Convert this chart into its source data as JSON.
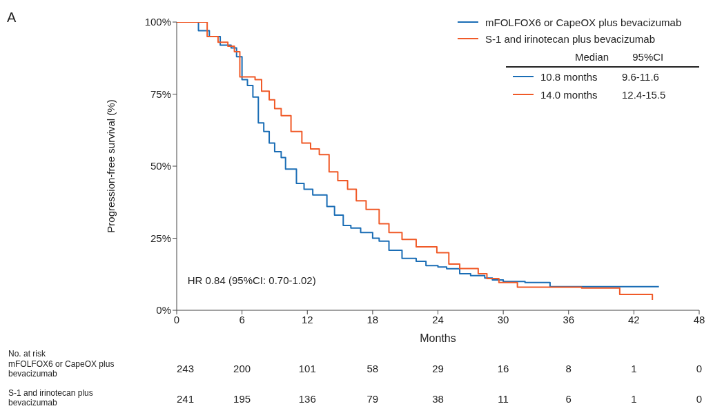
{
  "chart_data": {
    "type": "step",
    "xlabel": "Months",
    "ylabel": "Progression-free survival (%)",
    "xlim": [
      0,
      48
    ],
    "xticks": [
      0,
      6,
      12,
      18,
      24,
      30,
      36,
      42,
      48
    ],
    "ylim": [
      0,
      100
    ],
    "yticks": [
      {
        "value": 0,
        "label": "0%"
      },
      {
        "value": 25,
        "label": "25%"
      },
      {
        "value": 50,
        "label": "50%"
      },
      {
        "value": 75,
        "label": "75%"
      },
      {
        "value": 100,
        "label": "100%"
      }
    ],
    "legend": "top right",
    "series": [
      {
        "name": "mFOLFOX6 or CapeOX plus bevacizumab",
        "color": "#1a6db5",
        "x": [
          0,
          2,
          3,
          4,
          5,
          5.5,
          6,
          6.5,
          7,
          7.5,
          8,
          8.5,
          9,
          9.6,
          10,
          11,
          11.7,
          12.5,
          13.8,
          14.5,
          15.3,
          16,
          16.9,
          18,
          18.6,
          19.5,
          20.7,
          22,
          22.9,
          24,
          24.8,
          26,
          27,
          28.3,
          29,
          30,
          32,
          33.7,
          34.3,
          44.3
        ],
        "values": [
          100,
          97,
          95,
          92,
          91,
          88,
          80,
          78,
          74,
          65,
          62,
          58,
          55,
          53,
          49,
          44,
          42,
          40,
          36,
          33,
          29.4,
          28.5,
          27,
          25,
          24,
          20.8,
          18,
          17,
          15.5,
          15,
          14.4,
          12.7,
          12,
          11.2,
          10.5,
          10,
          9.6,
          9.6,
          8.2,
          8.2
        ]
      },
      {
        "name": "S-1 and irinotecan plus bevacizumab",
        "color": "#f05a28",
        "x": [
          0,
          1.6,
          2.8,
          3.8,
          4.7,
          5.3,
          5.8,
          7.2,
          7.8,
          8.5,
          9,
          9.6,
          10.5,
          11.5,
          12.3,
          13.1,
          14,
          14.8,
          15.7,
          16.5,
          17.4,
          18.6,
          19.5,
          20.7,
          22,
          23.9,
          25,
          26,
          27.7,
          28.5,
          29.6,
          31.3,
          37.2,
          40.7,
          43.7
        ],
        "values": [
          100,
          100,
          95,
          93,
          91.6,
          89.7,
          81,
          80,
          76,
          73,
          70,
          67.5,
          62,
          58,
          56,
          54,
          48,
          45,
          42,
          38,
          35,
          30,
          27,
          24.6,
          22,
          20,
          16,
          14.5,
          12.7,
          11,
          9.6,
          8,
          7.7,
          5.5,
          3.6
        ]
      }
    ],
    "annotations": [
      "A",
      "HR 0.84 (95%CI: 0.70-1.02)",
      "Median",
      "95%CI",
      "10.8 months",
      "9.6-11.6",
      "14.0 months",
      "12.4-15.5",
      "No. at risk",
      "mFOLFOX6 or CapeOX plus bevacizumab",
      "S-1 and irinotecan plus bevacizumab",
      "243",
      "200",
      "101",
      "58",
      "29",
      "16",
      "8",
      "1",
      "0",
      "241",
      "195",
      "136",
      "79",
      "38",
      "11",
      "6",
      "1",
      "0"
    ]
  }
}
